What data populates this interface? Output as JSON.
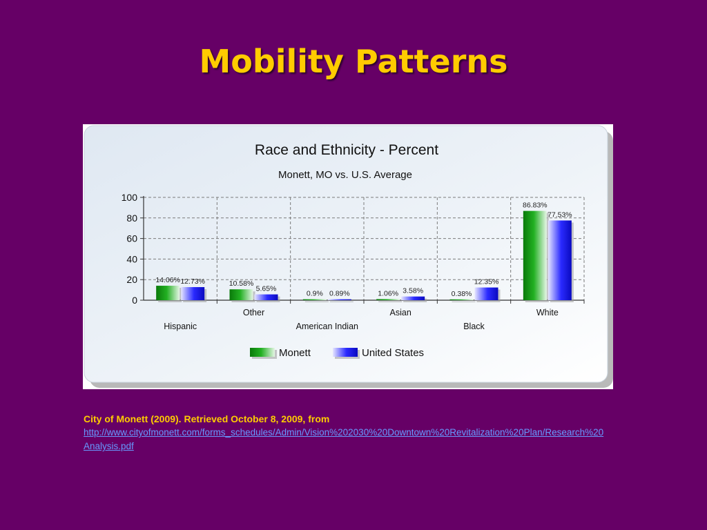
{
  "slide": {
    "title": "Mobility Patterns",
    "citation": "City of Monett (2009). Retrieved October 8, 2009, from",
    "citation_url": "http://www.cityofmonett.com/forms_schedules/Admin/Vision%202030%20Downtown%20Revitalization%20Plan/Research%20Analysis.pdf"
  },
  "chart_data": {
    "type": "bar",
    "title": "Race and Ethnicity - Percent",
    "subtitle": "Monett, MO vs. U.S. Average",
    "categories": [
      "Hispanic",
      "Other",
      "American Indian",
      "Asian",
      "Black",
      "White"
    ],
    "series": [
      {
        "name": "Monett",
        "values": [
          14.06,
          10.58,
          0.9,
          1.06,
          0.38,
          86.83
        ],
        "labels": [
          "14.06%",
          "10.58%",
          "0.9%",
          "1.06%",
          "0.38%",
          "86.83%"
        ],
        "color": "#1a9e1a"
      },
      {
        "name": "United States",
        "values": [
          12.73,
          5.65,
          0.89,
          3.58,
          12.35,
          77.53
        ],
        "labels": [
          "12.73%",
          "5.65%",
          "0.89%",
          "3.58%",
          "12.35%",
          "77.53%"
        ],
        "color": "#1a1aee"
      }
    ],
    "ylim": [
      0,
      100
    ],
    "yticks": [
      0,
      20,
      40,
      60,
      80,
      100
    ],
    "grid": true,
    "legend_position": "bottom"
  }
}
